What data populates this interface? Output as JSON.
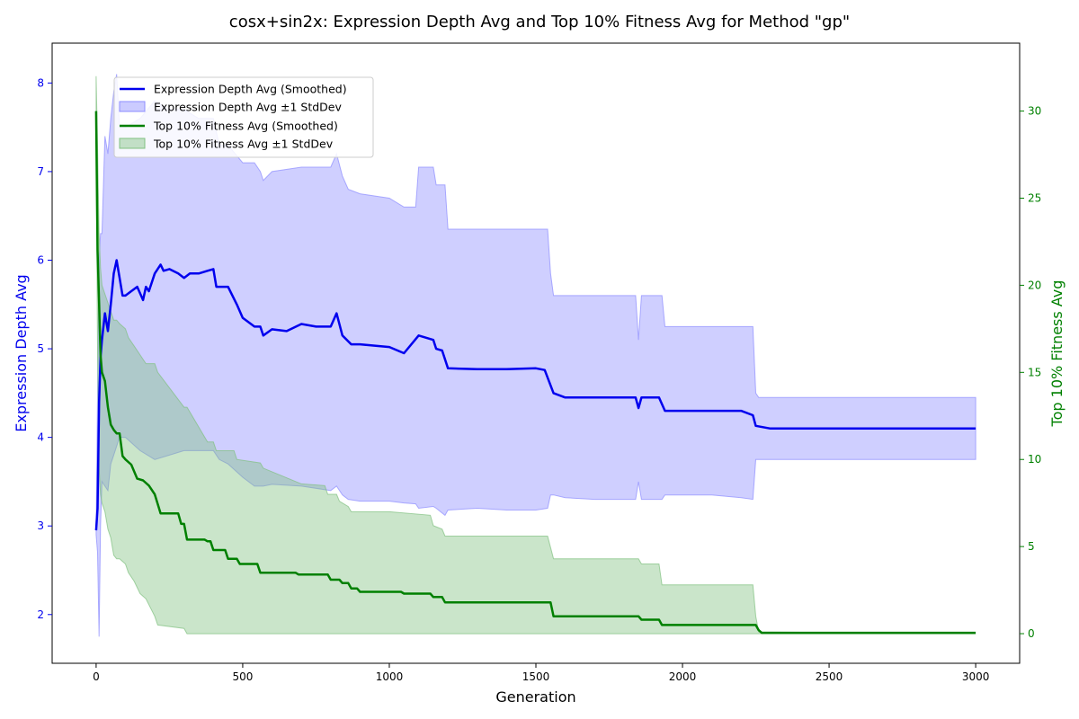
{
  "chart_data": {
    "type": "line",
    "title": "cosx+sin2x: Expression Depth Avg and Top 10% Fitness Avg for Method \"gp\"",
    "xlabel": "Generation",
    "ylabel_left": "Expression Depth Avg",
    "ylabel_right": "Top 10% Fitness Avg",
    "xlim": [
      -150,
      3150
    ],
    "ylim_left": [
      1.45,
      8.45
    ],
    "ylim_right": [
      -1.7,
      33.9
    ],
    "x_ticks": [
      0,
      500,
      1000,
      1500,
      2000,
      2500,
      3000
    ],
    "y_left_ticks": [
      2,
      3,
      4,
      5,
      6,
      7,
      8
    ],
    "y_right_ticks": [
      0,
      5,
      10,
      15,
      20,
      25,
      30
    ],
    "legend_position": "upper-left",
    "legend": [
      "Expression Depth Avg (Smoothed)",
      "Expression Depth Avg ±1 StdDev",
      "Top 10% Fitness Avg (Smoothed)",
      "Top 10% Fitness Avg ±1 StdDev"
    ],
    "colors": {
      "depth_line": "#0000ee",
      "depth_band": "#8c8cff",
      "fitness_line": "#008000",
      "fitness_band": "#80c080",
      "left_axis": "#0000ee",
      "right_axis": "#008000"
    },
    "series": [
      {
        "name": "Expression Depth Avg (Smoothed)",
        "axis": "left",
        "x": [
          0,
          5,
          10,
          15,
          20,
          30,
          40,
          50,
          60,
          70,
          80,
          90,
          100,
          120,
          140,
          160,
          170,
          180,
          200,
          220,
          230,
          250,
          280,
          300,
          320,
          350,
          380,
          400,
          410,
          420,
          450,
          480,
          500,
          540,
          560,
          570,
          600,
          650,
          700,
          750,
          800,
          820,
          840,
          870,
          900,
          1000,
          1050,
          1100,
          1150,
          1160,
          1180,
          1200,
          1300,
          1400,
          1500,
          1530,
          1560,
          1600,
          1700,
          1800,
          1840,
          1850,
          1860,
          1900,
          1920,
          1940,
          2000,
          2100,
          2200,
          2240,
          2250,
          2300,
          2500,
          2700,
          3000
        ],
        "y": [
          2.95,
          3.2,
          4.4,
          4.9,
          5.1,
          5.4,
          5.2,
          5.5,
          5.85,
          6.0,
          5.8,
          5.6,
          5.6,
          5.65,
          5.7,
          5.55,
          5.7,
          5.65,
          5.85,
          5.95,
          5.88,
          5.9,
          5.85,
          5.8,
          5.85,
          5.85,
          5.88,
          5.9,
          5.7,
          5.7,
          5.7,
          5.5,
          5.35,
          5.25,
          5.25,
          5.15,
          5.22,
          5.2,
          5.28,
          5.25,
          5.25,
          5.4,
          5.15,
          5.05,
          5.05,
          5.02,
          4.95,
          5.15,
          5.1,
          5.0,
          4.98,
          4.78,
          4.77,
          4.77,
          4.78,
          4.76,
          4.5,
          4.45,
          4.45,
          4.45,
          4.45,
          4.33,
          4.45,
          4.45,
          4.45,
          4.3,
          4.3,
          4.3,
          4.3,
          4.25,
          4.13,
          4.1,
          4.1,
          4.1,
          4.1
        ]
      },
      {
        "name": "Expression Depth Avg ±1 StdDev",
        "axis": "left",
        "band": true,
        "x": [
          0,
          5,
          10,
          15,
          20,
          30,
          40,
          50,
          60,
          70,
          80,
          100,
          150,
          200,
          250,
          300,
          350,
          400,
          420,
          450,
          500,
          540,
          560,
          570,
          600,
          700,
          800,
          820,
          840,
          860,
          900,
          1000,
          1050,
          1090,
          1100,
          1150,
          1160,
          1190,
          1200,
          1300,
          1400,
          1500,
          1540,
          1550,
          1560,
          1600,
          1700,
          1800,
          1840,
          1850,
          1860,
          1900,
          1930,
          1940,
          2000,
          2100,
          2200,
          2240,
          2250,
          2260,
          2500,
          3000
        ],
        "upper": [
          3.0,
          4.5,
          6.0,
          6.3,
          6.3,
          7.4,
          7.2,
          7.6,
          7.9,
          8.1,
          7.5,
          7.5,
          7.6,
          7.8,
          7.7,
          7.7,
          7.6,
          7.6,
          7.3,
          7.3,
          7.1,
          7.1,
          7.0,
          6.9,
          7.0,
          7.05,
          7.05,
          7.2,
          6.95,
          6.8,
          6.75,
          6.7,
          6.6,
          6.6,
          7.05,
          7.05,
          6.85,
          6.85,
          6.35,
          6.35,
          6.35,
          6.35,
          6.35,
          5.85,
          5.6,
          5.6,
          5.6,
          5.6,
          5.6,
          5.1,
          5.6,
          5.6,
          5.6,
          5.25,
          5.25,
          5.25,
          5.25,
          5.25,
          4.5,
          4.45,
          4.45,
          4.45
        ],
        "lower": [
          2.9,
          2.7,
          1.75,
          3.0,
          3.5,
          3.45,
          3.4,
          3.7,
          3.8,
          3.9,
          4.0,
          4.0,
          3.85,
          3.75,
          3.8,
          3.85,
          3.85,
          3.85,
          3.75,
          3.7,
          3.55,
          3.45,
          3.45,
          3.45,
          3.47,
          3.45,
          3.4,
          3.45,
          3.35,
          3.3,
          3.28,
          3.28,
          3.26,
          3.25,
          3.2,
          3.22,
          3.2,
          3.12,
          3.18,
          3.2,
          3.18,
          3.18,
          3.2,
          3.35,
          3.35,
          3.32,
          3.3,
          3.3,
          3.3,
          3.5,
          3.3,
          3.3,
          3.3,
          3.35,
          3.35,
          3.35,
          3.32,
          3.3,
          3.75,
          3.75,
          3.75,
          3.75
        ]
      },
      {
        "name": "Top 10% Fitness Avg (Smoothed)",
        "axis": "right",
        "x": [
          0,
          5,
          10,
          15,
          20,
          30,
          40,
          50,
          60,
          70,
          80,
          90,
          100,
          120,
          140,
          160,
          180,
          200,
          220,
          280,
          290,
          300,
          310,
          370,
          380,
          390,
          400,
          440,
          450,
          480,
          490,
          500,
          550,
          560,
          570,
          680,
          690,
          790,
          800,
          830,
          840,
          860,
          870,
          890,
          900,
          1040,
          1050,
          1140,
          1150,
          1180,
          1190,
          1550,
          1560,
          1850,
          1860,
          1920,
          1930,
          2250,
          2260,
          2270,
          3000
        ],
        "y": [
          30.0,
          22.0,
          19.0,
          16.0,
          15.0,
          14.5,
          13.0,
          12.0,
          11.7,
          11.5,
          11.5,
          10.2,
          10.0,
          9.7,
          8.9,
          8.8,
          8.5,
          8.0,
          6.9,
          6.9,
          6.3,
          6.3,
          5.4,
          5.4,
          5.3,
          5.3,
          4.8,
          4.8,
          4.3,
          4.3,
          4.0,
          4.0,
          4.0,
          3.5,
          3.5,
          3.5,
          3.4,
          3.4,
          3.1,
          3.1,
          2.9,
          2.9,
          2.6,
          2.6,
          2.4,
          2.4,
          2.3,
          2.3,
          2.1,
          2.1,
          1.8,
          1.8,
          1.0,
          1.0,
          0.8,
          0.8,
          0.5,
          0.5,
          0.2,
          0.05,
          0.05
        ]
      },
      {
        "name": "Top 10% Fitness Avg ±1 StdDev",
        "axis": "right",
        "band": true,
        "x": [
          0,
          5,
          10,
          15,
          20,
          30,
          40,
          50,
          60,
          70,
          80,
          100,
          110,
          130,
          150,
          170,
          200,
          210,
          300,
          310,
          380,
          400,
          410,
          470,
          480,
          560,
          570,
          700,
          780,
          790,
          820,
          830,
          860,
          870,
          1000,
          1140,
          1150,
          1180,
          1190,
          1540,
          1560,
          1800,
          1850,
          1860,
          1920,
          1930,
          2240,
          2250,
          2260,
          3000
        ],
        "upper": [
          32.0,
          28.0,
          23.0,
          21.0,
          20.0,
          19.5,
          19.0,
          18.5,
          18.0,
          18.0,
          17.8,
          17.5,
          17.0,
          16.5,
          16.0,
          15.5,
          15.5,
          15.0,
          13.0,
          13.0,
          11.0,
          11.0,
          10.5,
          10.5,
          10.0,
          9.8,
          9.5,
          8.6,
          8.5,
          8.0,
          8.0,
          7.6,
          7.3,
          7.0,
          7.0,
          6.8,
          6.2,
          6.0,
          5.6,
          5.6,
          4.3,
          4.3,
          4.3,
          4.0,
          4.0,
          2.8,
          2.8,
          1.0,
          0.1,
          0.0
        ],
        "lower": [
          28.0,
          16.0,
          9.5,
          8.0,
          7.5,
          7.0,
          6.0,
          5.5,
          4.5,
          4.3,
          4.3,
          4.0,
          3.5,
          3.0,
          2.3,
          2.0,
          1.0,
          0.5,
          0.3,
          0.0,
          0.0,
          0.0,
          0.0,
          0.0,
          0.0,
          0.0,
          0.0,
          0.0,
          0.0,
          0.0,
          0.0,
          0.0,
          0.0,
          0.0,
          0.0,
          0.0,
          0.0,
          0.0,
          0.0,
          0.0,
          0.0,
          0.0,
          0.0,
          0.0,
          0.0,
          0.0,
          0.0,
          0.0,
          0.0,
          0.0
        ]
      }
    ]
  }
}
